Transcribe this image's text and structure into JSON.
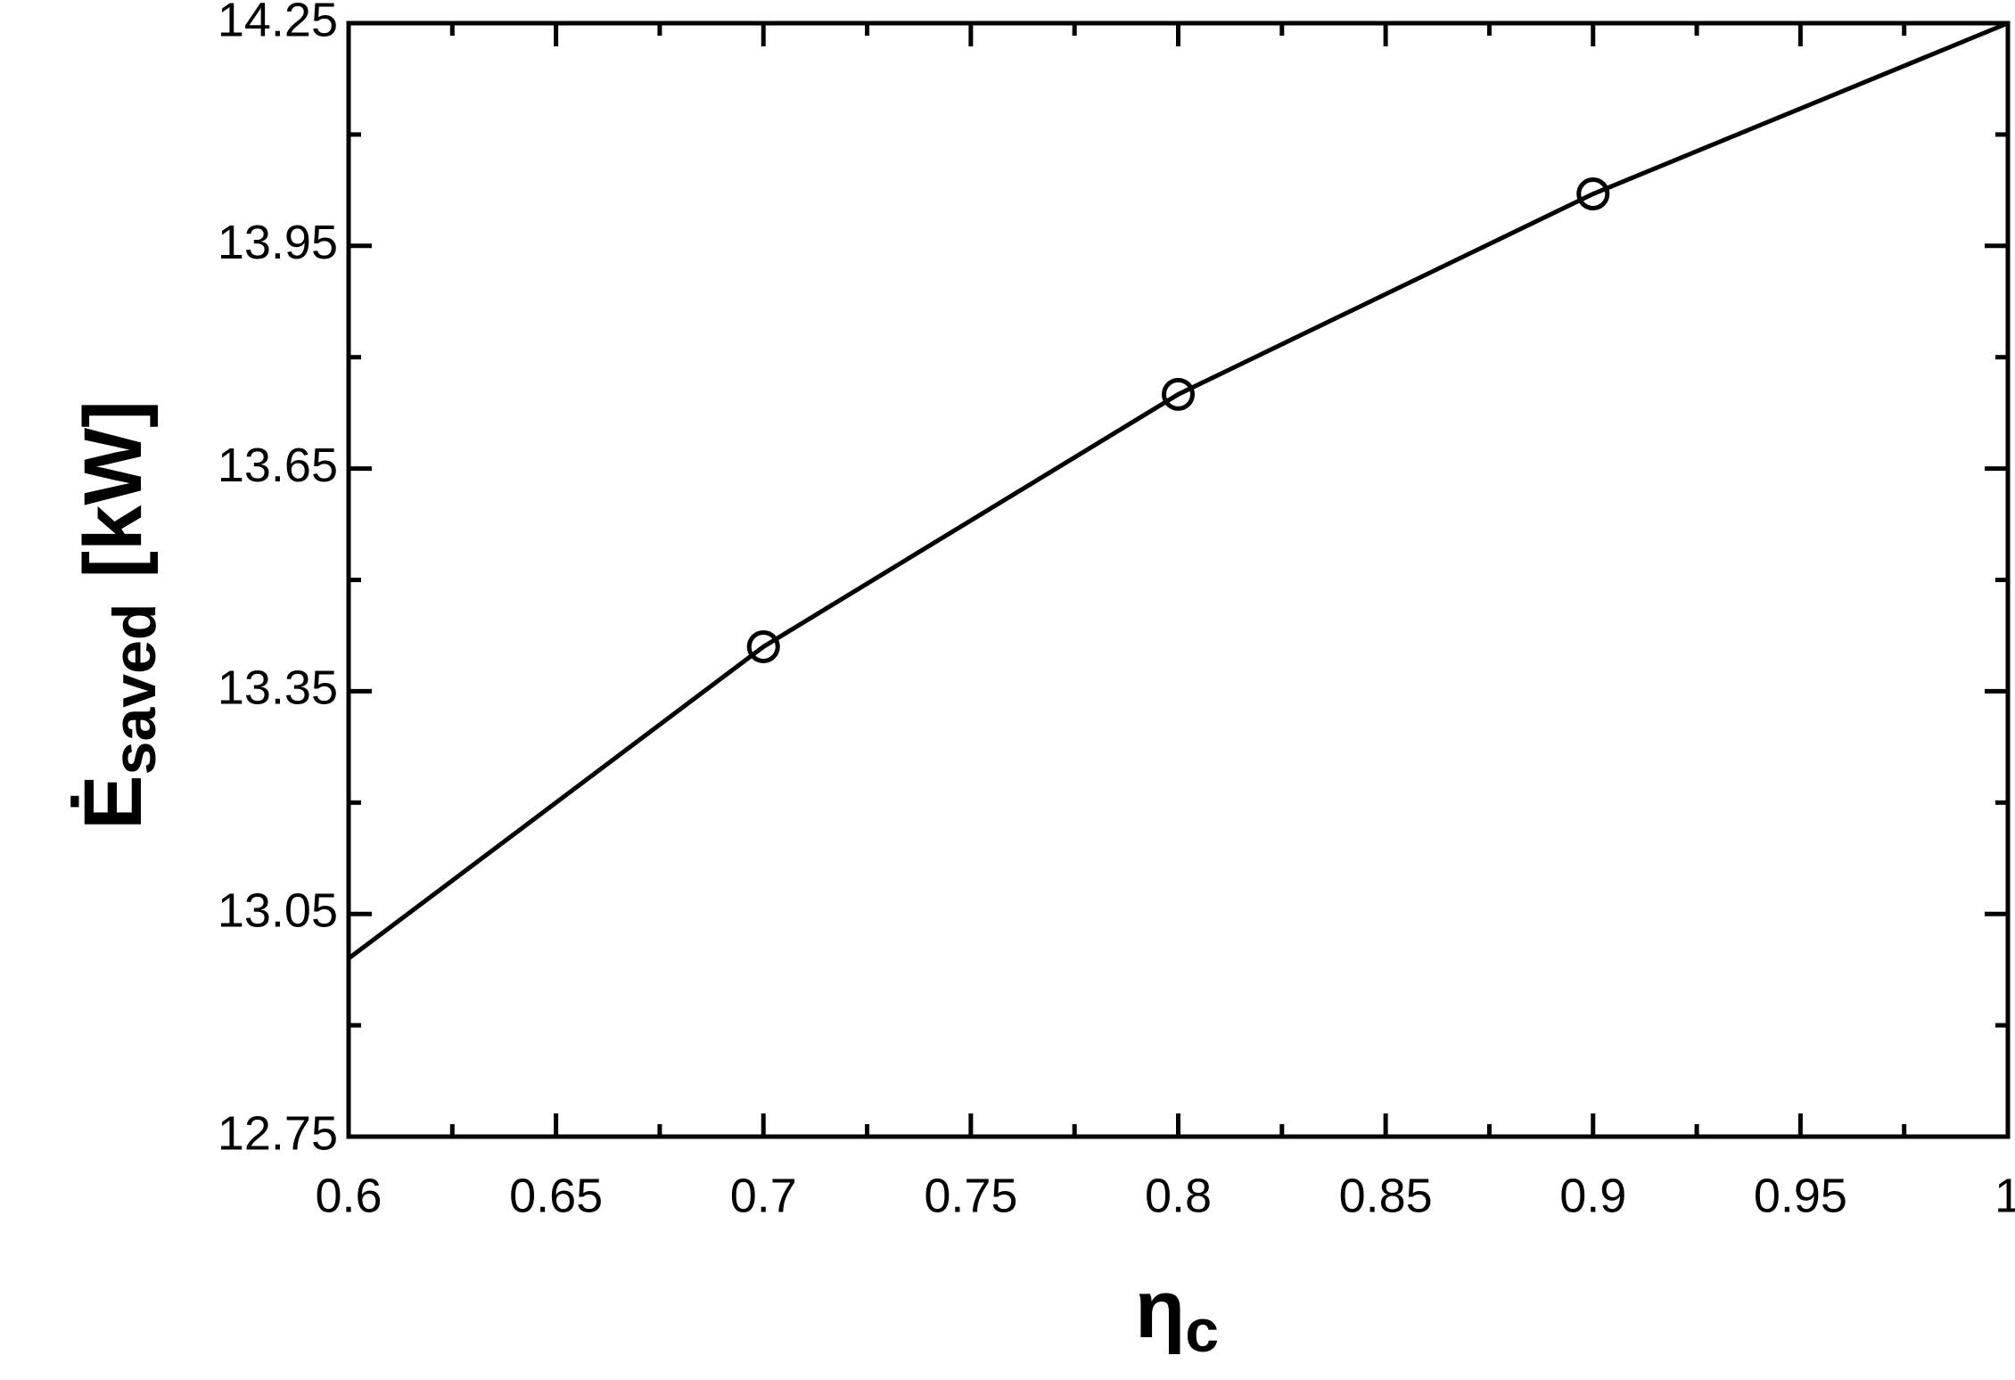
{
  "chart_data": {
    "type": "line",
    "xlabel_main": "η",
    "xlabel_sub": "c",
    "ylabel_main": "Ė",
    "ylabel_sub": "saved",
    "ylabel_unit": "[kW]",
    "x": [
      0.6,
      0.7,
      0.8,
      0.9,
      1.0
    ],
    "values": [
      12.99,
      13.41,
      13.75,
      14.02,
      14.25
    ],
    "color": "#000000",
    "points": {
      "x": [
        0.7,
        0.8,
        0.9
      ],
      "values": [
        13.41,
        13.75,
        14.02
      ],
      "marker": "open-circle"
    },
    "xlim": [
      0.6,
      1
    ],
    "ylim": [
      12.75,
      14.25
    ],
    "xticks": [
      0.6,
      0.65,
      0.7,
      0.75,
      0.8,
      0.85,
      0.9,
      0.95,
      1
    ],
    "yticks": [
      12.75,
      13.05,
      13.35,
      13.65,
      13.95,
      14.25
    ],
    "grid": false
  }
}
